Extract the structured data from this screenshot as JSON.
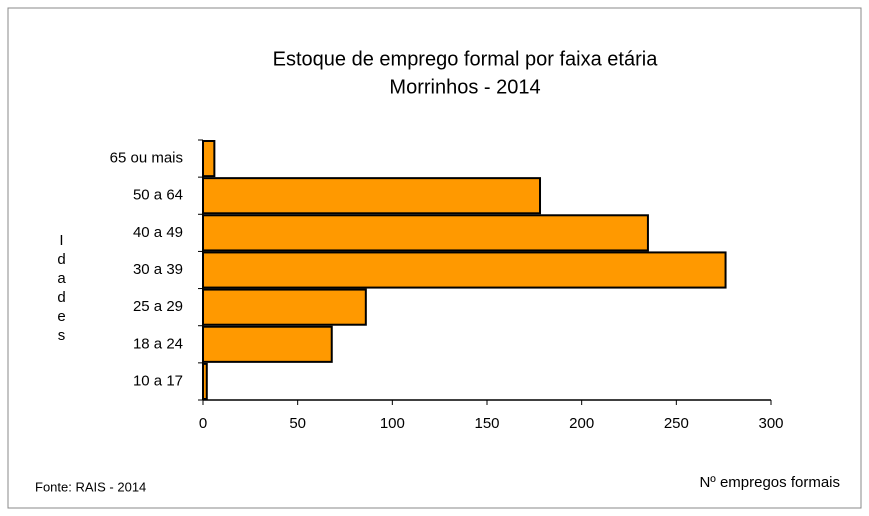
{
  "chart_data": {
    "type": "barh",
    "title": [
      "Estoque de emprego formal por faixa etária",
      "Morrinhos - 2014"
    ],
    "ylabel": "Idades",
    "xlabel": "Nº empregos formais",
    "source": "Fonte: RAIS - 2014",
    "categories": [
      "10 a 17",
      "18 a 24",
      "25 a 29",
      "30 a 39",
      "40 a 49",
      "50 a 64",
      "65 ou mais"
    ],
    "values": [
      2,
      68,
      86,
      276,
      235,
      178,
      6
    ],
    "color": "#ff9900",
    "xlim": [
      0,
      300
    ],
    "xticks": [
      0,
      50,
      100,
      150,
      200,
      250,
      300
    ]
  }
}
